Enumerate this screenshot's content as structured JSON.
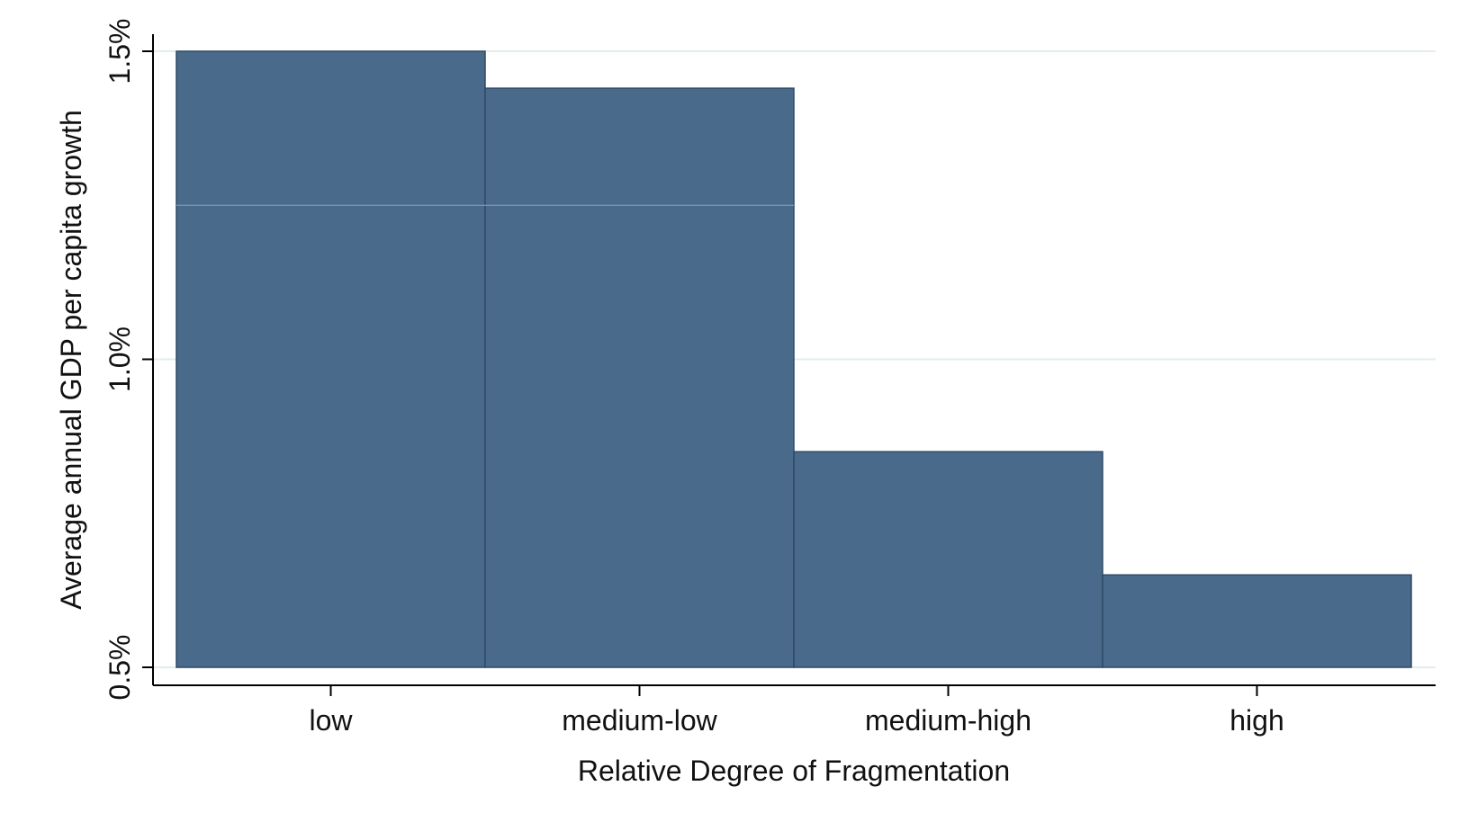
{
  "chart_data": {
    "type": "bar",
    "categories": [
      "low",
      "medium-low",
      "medium-high",
      "high"
    ],
    "values": [
      1.5,
      1.44,
      0.85,
      0.65
    ],
    "xlabel": "Relative Degree of Fragmentation",
    "ylabel": "Average annual GDP per capita growth",
    "ylim": [
      0.5,
      1.5
    ],
    "yticks": [
      0.5,
      1.0,
      1.5
    ],
    "ytick_labels": [
      "0.5%",
      "1.0%",
      "1.5%"
    ],
    "grid": true,
    "legend": "none",
    "colors": {
      "bar": "#496a8a",
      "bar_edge": "#2f4a66",
      "grid": "#e3ecef",
      "axis": "#000000"
    }
  }
}
